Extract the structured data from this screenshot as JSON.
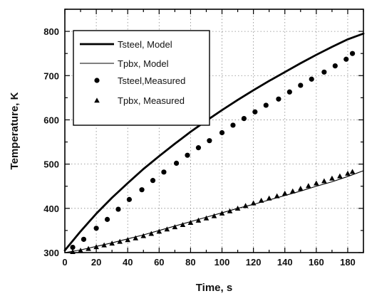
{
  "chart_data": {
    "type": "line",
    "xlabel": "Time, s",
    "ylabel": "Temperature, K",
    "xlim": [
      0,
      190
    ],
    "ylim": [
      300,
      850
    ],
    "xticks": [
      0,
      20,
      40,
      60,
      80,
      100,
      120,
      140,
      160,
      180
    ],
    "yticks": [
      300,
      400,
      500,
      600,
      700,
      800
    ],
    "x_minor_step": 10,
    "y_minor_step": 50,
    "grid": true,
    "legend_position": "top-left",
    "series": [
      {
        "name": "Tsteel, Model",
        "kind": "line",
        "style": "thick",
        "color": "#000000",
        "x": [
          0,
          10,
          20,
          30,
          40,
          50,
          60,
          70,
          80,
          90,
          100,
          110,
          120,
          130,
          140,
          150,
          160,
          170,
          180,
          190
        ],
        "y": [
          305,
          348,
          388,
          424,
          457,
          489,
          518,
          546,
          573,
          598,
          622,
          645,
          667,
          688,
          708,
          728,
          747,
          765,
          782,
          795
        ]
      },
      {
        "name": "Tpbx,  Model",
        "kind": "line",
        "style": "thin",
        "color": "#000000",
        "x": [
          0,
          10,
          20,
          30,
          40,
          50,
          60,
          70,
          80,
          90,
          100,
          110,
          120,
          130,
          140,
          150,
          160,
          170,
          180,
          190
        ],
        "y": [
          300,
          306,
          314,
          322,
          331,
          340,
          350,
          360,
          370,
          380,
          390,
          400,
          409,
          419,
          429,
          439,
          450,
          460,
          472,
          485
        ]
      },
      {
        "name": "Tsteel,Measured",
        "kind": "scatter",
        "marker": "circle",
        "color": "#000000",
        "x": [
          5,
          12,
          20,
          27,
          34,
          41,
          49,
          56,
          63,
          71,
          78,
          85,
          92,
          100,
          107,
          114,
          121,
          128,
          136,
          143,
          150,
          157,
          165,
          172,
          179,
          183
        ],
        "y": [
          312,
          330,
          355,
          375,
          398,
          420,
          442,
          463,
          482,
          502,
          520,
          537,
          553,
          571,
          588,
          603,
          618,
          633,
          647,
          663,
          678,
          692,
          708,
          722,
          737,
          750
        ]
      },
      {
        "name": "Tpbx,  Measured",
        "kind": "scatter",
        "marker": "triangle",
        "color": "#000000",
        "x": [
          5,
          10,
          15,
          20,
          25,
          30,
          35,
          40,
          45,
          50,
          55,
          60,
          65,
          70,
          75,
          80,
          85,
          90,
          95,
          100,
          105,
          110,
          115,
          120,
          125,
          130,
          135,
          140,
          145,
          150,
          155,
          160,
          165,
          170,
          175,
          180,
          183
        ],
        "y": [
          302,
          305,
          309,
          313,
          317,
          321,
          325,
          329,
          333,
          338,
          343,
          348,
          353,
          358,
          363,
          368,
          373,
          378,
          383,
          389,
          394,
          400,
          406,
          412,
          418,
          423,
          428,
          434,
          439,
          445,
          451,
          457,
          462,
          468,
          473,
          479,
          483
        ]
      }
    ]
  }
}
